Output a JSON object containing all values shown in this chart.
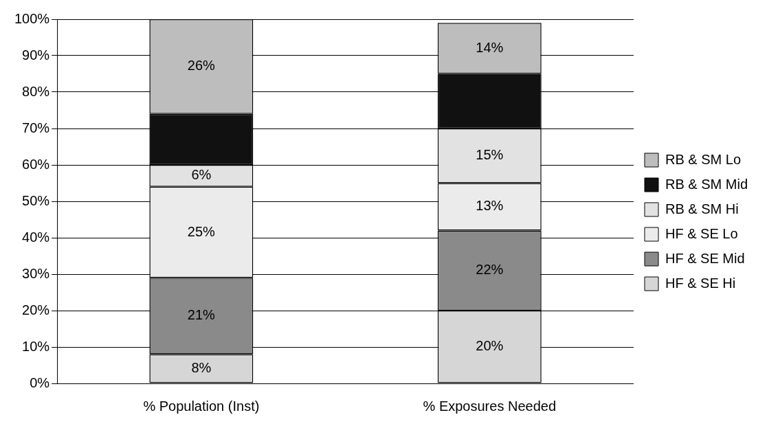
{
  "chart_data": {
    "type": "bar",
    "stacked": true,
    "categories": [
      "% Population (Inst)",
      "% Exposures Needed"
    ],
    "series": [
      {
        "name": "HF & SE Hi",
        "color": "#d6d6d6",
        "values": [
          8,
          20
        ],
        "value_labels": [
          "8%",
          "20%"
        ]
      },
      {
        "name": "HF & SE Mid",
        "color": "#8a8a8a",
        "values": [
          21,
          22
        ],
        "value_labels": [
          "21%",
          "22%"
        ]
      },
      {
        "name": "HF & SE Lo",
        "color": "#ebebeb",
        "values": [
          25,
          13
        ],
        "value_labels": [
          "25%",
          "13%"
        ]
      },
      {
        "name": "RB & SM Hi",
        "color": "#e2e2e2",
        "values": [
          6,
          15
        ],
        "value_labels": [
          "6%",
          "15%"
        ]
      },
      {
        "name": "RB & SM Mid",
        "color": "#111111",
        "values": [
          14,
          15
        ],
        "value_labels": [
          null,
          null
        ]
      },
      {
        "name": "RB & SM Lo",
        "color": "#bdbdbd",
        "values": [
          26,
          14
        ],
        "value_labels": [
          "26%",
          "14%"
        ]
      }
    ],
    "ylim": [
      0,
      100
    ],
    "yticks": [
      {
        "value": 0,
        "label": "0%"
      },
      {
        "value": 10,
        "label": "10%"
      },
      {
        "value": 20,
        "label": "20%"
      },
      {
        "value": 30,
        "label": "30%"
      },
      {
        "value": 40,
        "label": "40%"
      },
      {
        "value": 50,
        "label": "50%"
      },
      {
        "value": 60,
        "label": "60%"
      },
      {
        "value": 70,
        "label": "70%"
      },
      {
        "value": 80,
        "label": "80%"
      },
      {
        "value": 90,
        "label": "90%"
      },
      {
        "value": 100,
        "label": "100%"
      }
    ],
    "grid": "y",
    "legend": "right"
  }
}
